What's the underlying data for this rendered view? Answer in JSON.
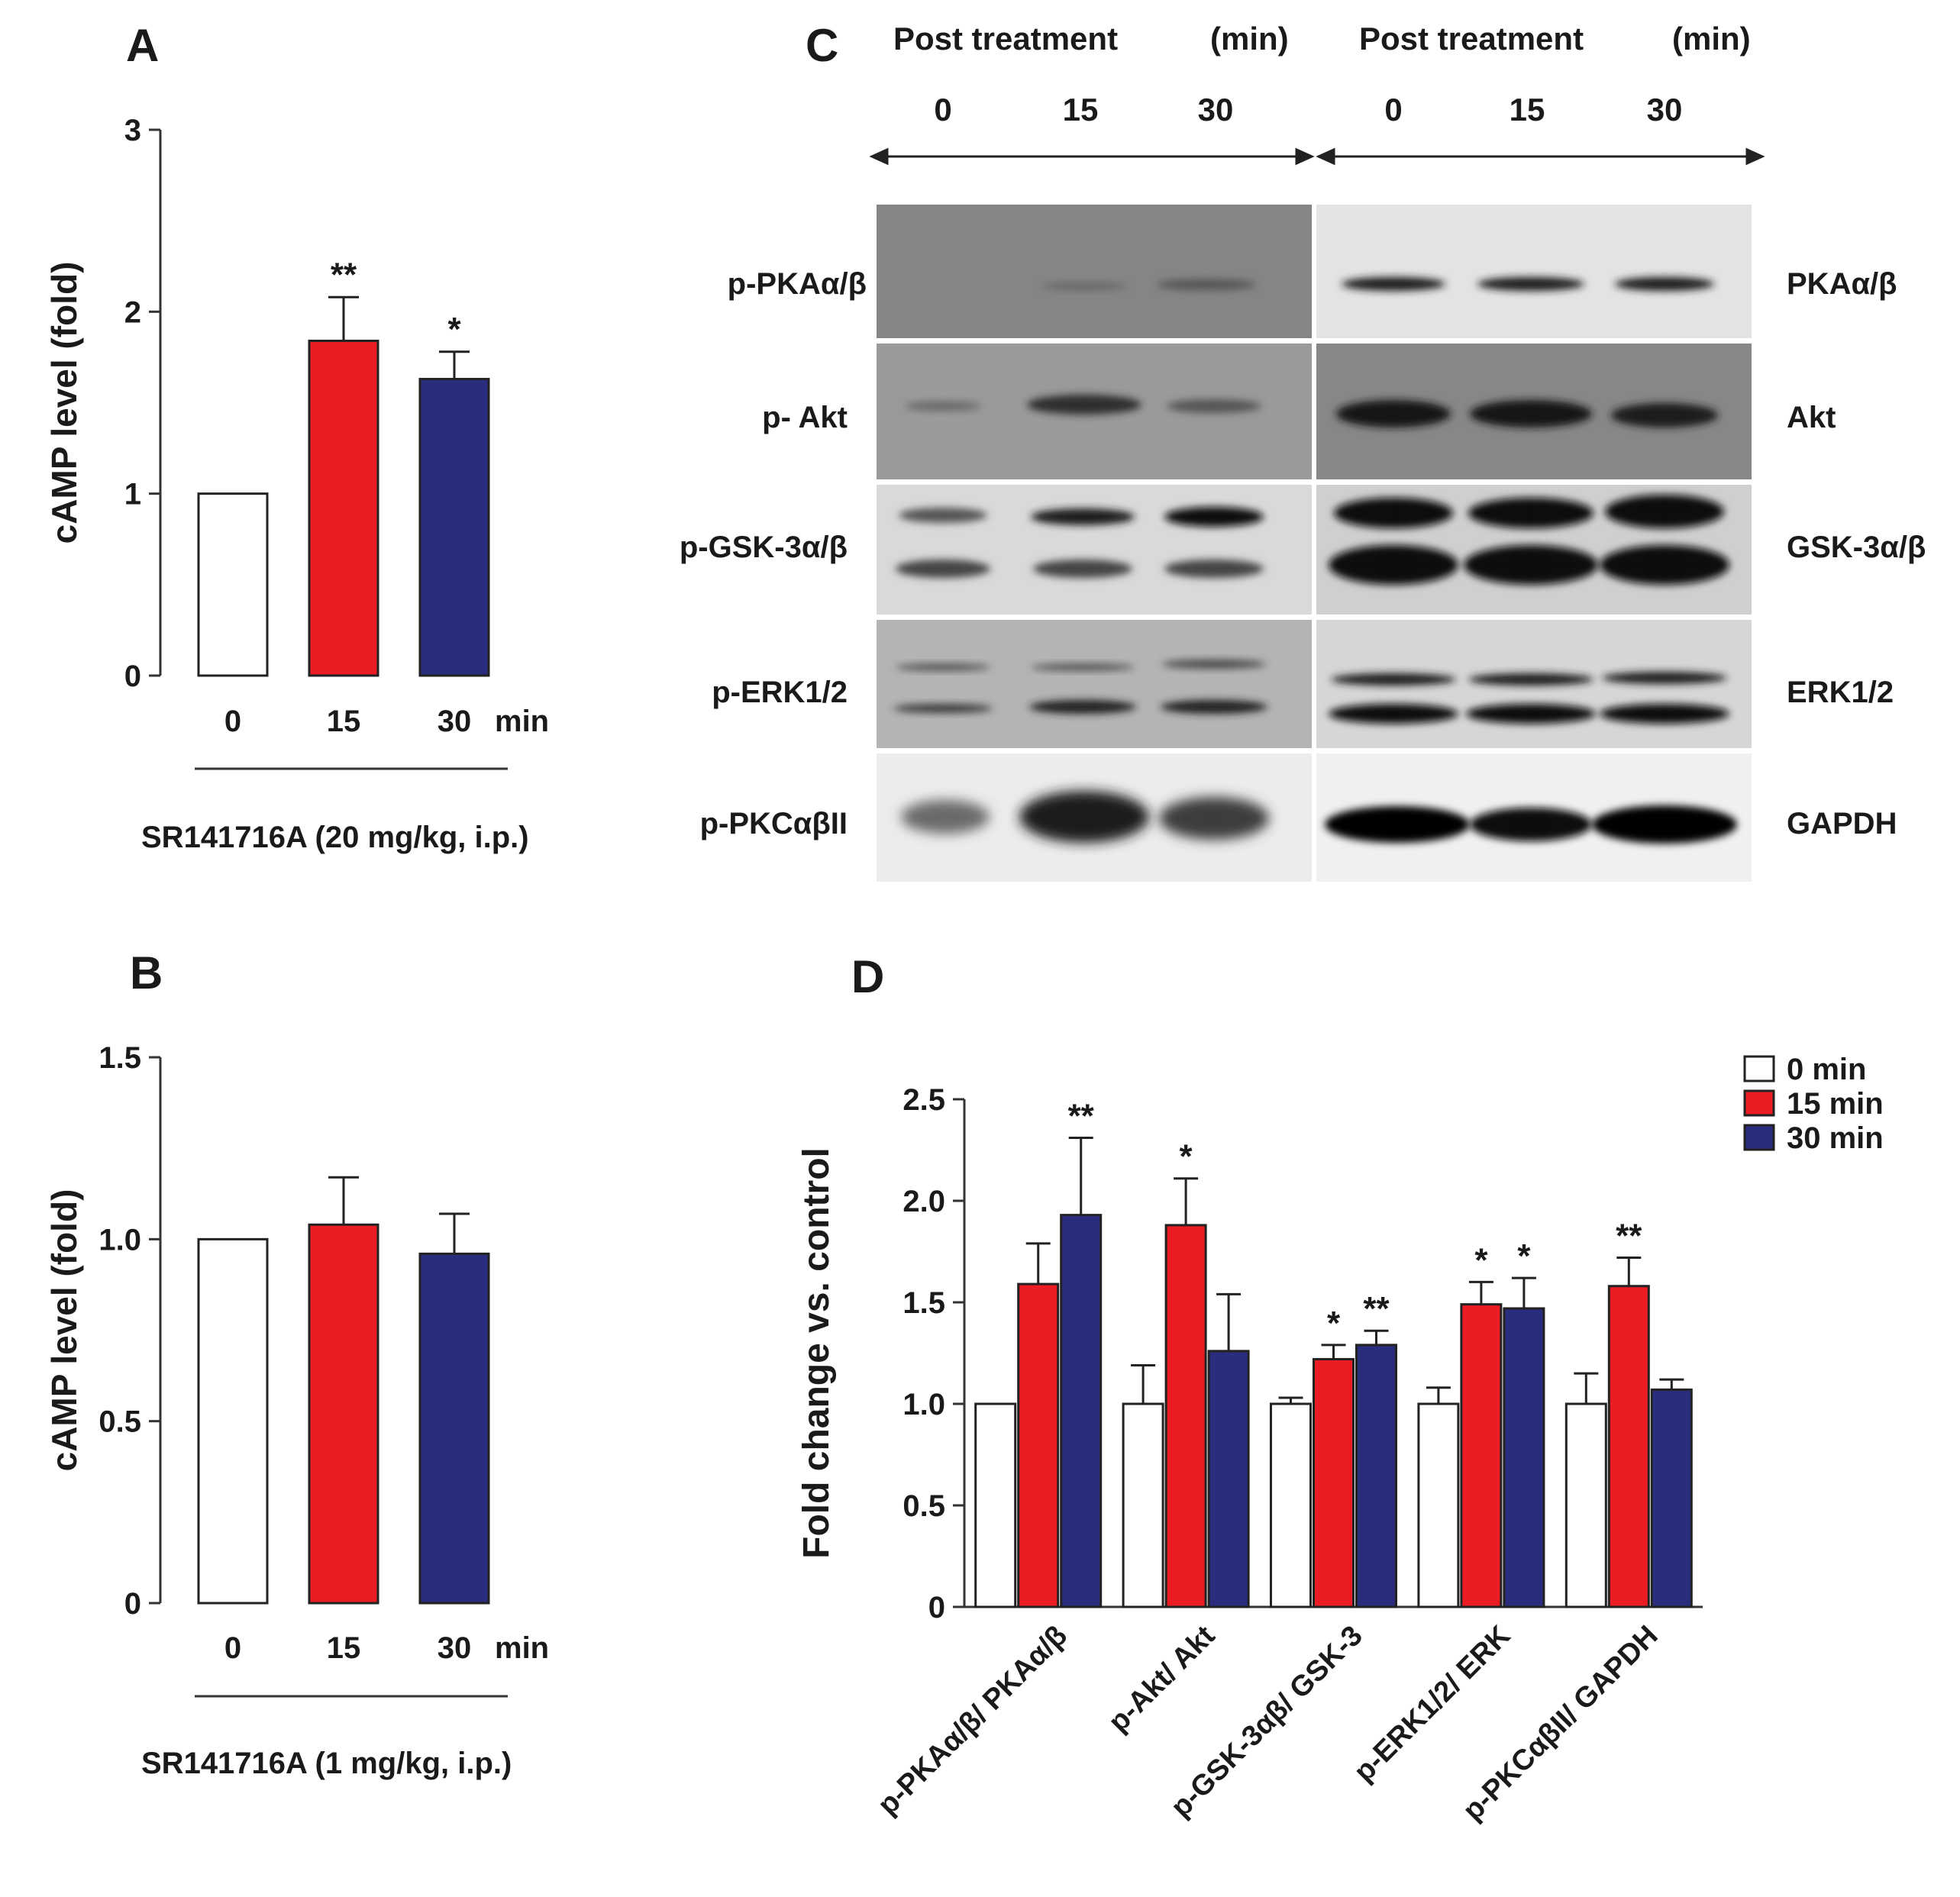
{
  "colors": {
    "c0": "#ffffff",
    "c15": "#ec1c24",
    "c30": "#2a2d7e",
    "axis": "#333333"
  },
  "panels": {
    "A": {
      "letter": "A",
      "group_label": "SR141716A (20 mg/kg, i.p.)",
      "unit": "min"
    },
    "B": {
      "letter": "B",
      "group_label": "SR141716A (1 mg/kg, i.p.)",
      "unit": "min"
    },
    "C": {
      "letter": "C",
      "headers": [
        {
          "title": "Post treatment",
          "unit": "(min)",
          "lanes": [
            "0",
            "15",
            "30"
          ]
        },
        {
          "title": "Post treatment",
          "unit": "(min)",
          "lanes": [
            "0",
            "15",
            "30"
          ]
        }
      ],
      "left_labels": [
        "p-PKAα/β",
        "p- Akt",
        "p-GSK-3α/β",
        "p-ERK1/2",
        "p-PKCαβII"
      ],
      "right_labels": [
        "PKAα/β",
        "Akt",
        "GSK-3α/β",
        "ERK1/2",
        "GAPDH"
      ]
    },
    "D": {
      "letter": "D"
    }
  },
  "chart_data": [
    {
      "type": "bar",
      "panel": "A",
      "categories": [
        "0",
        "15",
        "30"
      ],
      "values": [
        1.0,
        1.84,
        1.63
      ],
      "errors": [
        0,
        0.24,
        0.15
      ],
      "significance": [
        "",
        "**",
        "*"
      ],
      "ylabel": "cAMP level (fold)",
      "xlabel": "min",
      "ylim": [
        0,
        3
      ],
      "yticks": [
        "0",
        "1",
        "2",
        "3"
      ]
    },
    {
      "type": "bar",
      "panel": "B",
      "categories": [
        "0",
        "15",
        "30"
      ],
      "values": [
        1.0,
        1.04,
        0.96
      ],
      "errors": [
        0,
        0.13,
        0.11
      ],
      "significance": [
        "",
        "",
        ""
      ],
      "ylabel": "cAMP level (fold)",
      "xlabel": "min",
      "ylim": [
        0,
        1.5
      ],
      "yticks": [
        "0",
        "0.5",
        "1.0",
        "1.5"
      ]
    },
    {
      "type": "bar",
      "panel": "D",
      "categories": [
        "p-PKAα/β/ PKAα/β",
        "p-Akt/ Akt",
        "p-GSK-3αβ/ GSK-3",
        "p-ERK1/2/ ERK",
        "p-PKCαβII/ GAPDH"
      ],
      "series": [
        {
          "name": "0 min",
          "values": [
            1.0,
            1.0,
            1.0,
            1.0,
            1.0
          ],
          "errors": [
            0,
            0.19,
            0.03,
            0.08,
            0.15
          ],
          "significance": [
            "",
            "",
            "",
            "",
            ""
          ]
        },
        {
          "name": "15 min",
          "values": [
            1.59,
            1.88,
            1.22,
            1.49,
            1.58
          ],
          "errors": [
            0.2,
            0.23,
            0.07,
            0.11,
            0.14
          ],
          "significance": [
            "",
            "*",
            "*",
            "*",
            "**"
          ]
        },
        {
          "name": "30 min",
          "values": [
            1.93,
            1.26,
            1.29,
            1.47,
            1.07
          ],
          "errors": [
            0.38,
            0.28,
            0.07,
            0.15,
            0.05
          ],
          "significance": [
            "**",
            "",
            "**",
            "*",
            ""
          ]
        }
      ],
      "ylabel": "Fold change vs. control",
      "ylim": [
        0,
        2.5
      ],
      "yticks": [
        "0",
        "0.5",
        "1.0",
        "1.5",
        "2.0",
        "2.5"
      ],
      "legend": "top-right"
    }
  ]
}
